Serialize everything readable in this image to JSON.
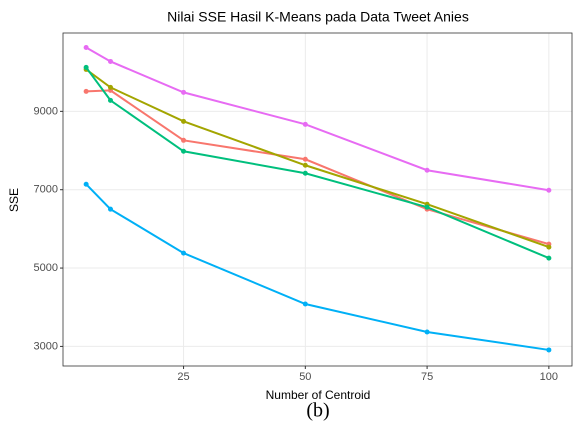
{
  "chart_data": {
    "type": "line",
    "title": "Nilai SSE Hasil K-Means pada Data Tweet Anies",
    "x_label": "Number of Centroid",
    "y_label": "SSE",
    "caption": "(b)",
    "x": [
      5,
      10,
      25,
      50,
      75,
      100
    ],
    "series": [
      {
        "color": "#e76bf3",
        "values": [
          10630,
          10274,
          9484,
          8669,
          7497,
          6987
        ]
      },
      {
        "color": "#f8766d",
        "values": [
          9510,
          9535,
          8261,
          7777,
          6503,
          5611
        ]
      },
      {
        "color": "#a3a500",
        "values": [
          10070,
          9611,
          8745,
          7624,
          6630,
          5535
        ]
      },
      {
        "color": "#00bf7d",
        "values": [
          10121,
          9280,
          7981,
          7420,
          6554,
          5254
        ]
      },
      {
        "color": "#00b0f6",
        "values": [
          7140,
          6503,
          5382,
          4082,
          3369,
          2910
        ]
      }
    ],
    "xlim": [
      0.25,
      104.75
    ],
    "xticks": [
      25,
      50,
      75,
      100
    ],
    "ylim": [
      2500,
      11000
    ],
    "yticks": [
      3000,
      5000,
      7000,
      9000
    ],
    "grid": true
  }
}
